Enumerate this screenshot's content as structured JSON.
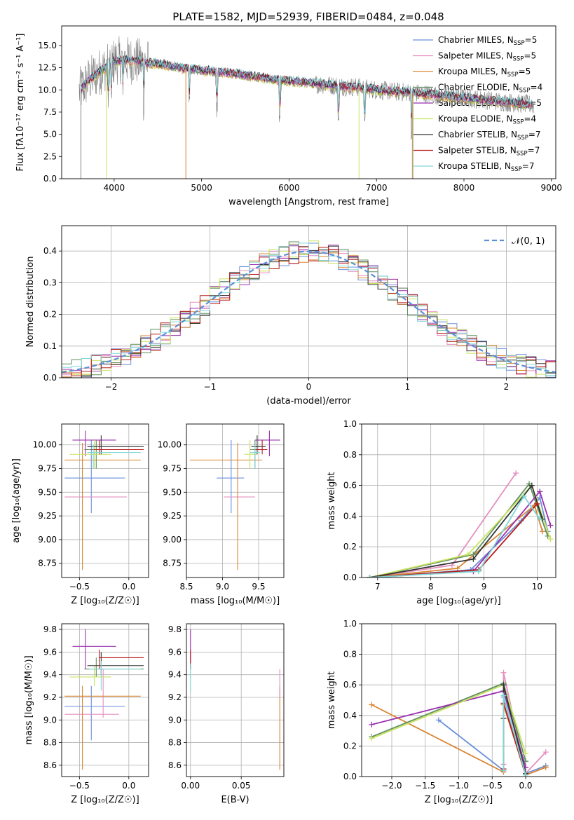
{
  "title": "PLATE=1582, MJD=52939, FIBERID=0484, z=0.048",
  "colors": {
    "c0": "#6a8fd9",
    "c1": "#e58fbf",
    "c2": "#d98530",
    "c3": "#5f8f5f",
    "c4": "#9b2fb0",
    "c5": "#c9e35f",
    "c6": "#333333",
    "c7": "#b81c1c",
    "c8": "#7fd6d6",
    "gray": "#808080",
    "normal": "#5b8fd6"
  },
  "legend_entries": [
    {
      "label": "Chabrier MILES, N",
      "sub": "SSP",
      "suffix": "=5",
      "color": "c0"
    },
    {
      "label": "Salpeter MILES, N",
      "sub": "SSP",
      "suffix": "=5",
      "color": "c1"
    },
    {
      "label": "Kroupa MILES, N",
      "sub": "SSP",
      "suffix": "=5",
      "color": "c2"
    },
    {
      "label": "Chabrier ELODIE, N",
      "sub": "SSP",
      "suffix": "=4",
      "color": "c3"
    },
    {
      "label": "Salpeter ELODIE, N",
      "sub": "SSP",
      "suffix": "=5",
      "color": "c4"
    },
    {
      "label": "Kroupa ELODIE, N",
      "sub": "SSP",
      "suffix": "=4",
      "color": "c5"
    },
    {
      "label": "Chabrier STELIB, N",
      "sub": "SSP",
      "suffix": "=7",
      "color": "c6"
    },
    {
      "label": "Salpeter STELIB, N",
      "sub": "SSP",
      "suffix": "=7",
      "color": "c7"
    },
    {
      "label": "Kroupa STELIB, N",
      "sub": "SSP",
      "suffix": "=7",
      "color": "c8"
    }
  ],
  "chart_data": [
    {
      "id": "spectrum",
      "type": "line",
      "xlabel": "wavelength [Angstrom, rest frame]",
      "ylabel": "Flux [fλ10⁻¹⁷ erg cm⁻² s⁻¹ A⁻¹]",
      "xlim": [
        3400,
        9050
      ],
      "ylim": [
        0,
        17.2
      ],
      "xticks": [
        4000,
        5000,
        6000,
        7000,
        8000,
        9000
      ],
      "yticks": [
        0.0,
        2.5,
        5.0,
        7.5,
        10.0,
        12.5,
        15.0
      ],
      "continuum": {
        "x": [
          3600,
          3700,
          3800,
          3900,
          4000,
          4100,
          4200,
          4400,
          4600,
          4800,
          5000,
          5200,
          5400,
          5600,
          5800,
          6000,
          6200,
          6400,
          6600,
          6800,
          7000,
          7200,
          7400,
          7600,
          7800,
          8000,
          8200,
          8400,
          8600,
          8800
        ],
        "y": [
          9.8,
          11.0,
          11.8,
          12.5,
          13.2,
          13.4,
          13.3,
          13.0,
          12.8,
          12.4,
          12.2,
          12.0,
          11.8,
          11.5,
          11.2,
          11.0,
          10.8,
          10.6,
          10.4,
          10.3,
          10.0,
          9.8,
          9.7,
          9.5,
          9.3,
          9.1,
          8.9,
          8.7,
          8.5,
          8.3
        ]
      },
      "absorption_lines": [
        3934,
        3969,
        4102,
        4340,
        4861,
        5175,
        5893,
        6563,
        6867,
        7400
      ]
    },
    {
      "id": "residuals",
      "type": "bar",
      "xlabel": "(data-model)/error",
      "ylabel": "Normed distribution",
      "xlim": [
        -2.5,
        2.5
      ],
      "ylim": [
        0,
        0.48
      ],
      "xticks": [
        -2,
        -1,
        0,
        1,
        2
      ],
      "yticks": [
        0.0,
        0.1,
        0.2,
        0.3,
        0.4
      ],
      "bin_width": 0.1,
      "legend_label": "𝒩(0, 1)",
      "grid": true
    },
    {
      "id": "age_vs_Z",
      "type": "scatter",
      "xlabel": "Z [log₁₀(Z/Z☉)]",
      "ylabel": "age  [log₁₀(age/yr)]",
      "xlim": [
        -0.68,
        0.2
      ],
      "ylim": [
        8.6,
        10.22
      ],
      "xticks": [
        -0.5,
        0.0
      ],
      "yticks": [
        8.75,
        9.0,
        9.25,
        9.5,
        9.75,
        10.0
      ],
      "points": [
        {
          "c": "c0",
          "x": -0.38,
          "y": 9.65,
          "xl": -0.65,
          "xh": -0.04,
          "yl": 9.28,
          "yh": 10.05
        },
        {
          "c": "c1",
          "x": -0.36,
          "y": 9.45,
          "xl": -0.65,
          "xh": -0.02,
          "yl": 9.45,
          "yh": 9.45
        },
        {
          "c": "c2",
          "x": -0.47,
          "y": 9.84,
          "xl": -0.65,
          "xh": 0.12,
          "yl": 8.68,
          "yh": 10.02
        },
        {
          "c": "c3",
          "x": -0.33,
          "y": 9.95,
          "xl": -0.45,
          "xh": 0.15,
          "yl": 9.75,
          "yh": 10.05
        },
        {
          "c": "c4",
          "x": -0.44,
          "y": 10.05,
          "xl": -0.57,
          "xh": -0.13,
          "yl": 9.88,
          "yh": 10.15
        },
        {
          "c": "c5",
          "x": -0.35,
          "y": 9.9,
          "xl": -0.6,
          "xh": -0.18,
          "yl": 9.75,
          "yh": 10.05
        },
        {
          "c": "c6",
          "x": -0.28,
          "y": 9.98,
          "xl": -0.42,
          "xh": 0.15,
          "yl": 9.9,
          "yh": 10.1
        },
        {
          "c": "c7",
          "x": -0.3,
          "y": 9.95,
          "xl": -0.38,
          "xh": 0.15,
          "yl": 9.9,
          "yh": 10.05
        },
        {
          "c": "c8",
          "x": -0.36,
          "y": 9.92,
          "xl": -0.42,
          "xh": 0.12,
          "yl": 9.75,
          "yh": 10.0
        }
      ]
    },
    {
      "id": "age_vs_mass",
      "type": "scatter",
      "xlabel": "mass [log₁₀(M/M☉)]",
      "ylabel": "",
      "xlim": [
        8.5,
        9.85
      ],
      "ylim": [
        8.6,
        10.22
      ],
      "xticks": [
        8.5,
        9.0,
        9.5
      ],
      "yticks": [
        8.75,
        9.0,
        9.25,
        9.5,
        9.75,
        10.0
      ],
      "points": [
        {
          "c": "c0",
          "x": 9.12,
          "y": 9.65,
          "xl": 8.92,
          "xh": 9.3,
          "yl": 9.28,
          "yh": 10.05
        },
        {
          "c": "c1",
          "x": 9.05,
          "y": 9.45,
          "xl": 9.02,
          "xh": 9.45,
          "yl": 9.45,
          "yh": 9.45
        },
        {
          "c": "c2",
          "x": 9.21,
          "y": 9.84,
          "xl": 8.55,
          "xh": 9.55,
          "yl": 8.68,
          "yh": 10.02
        },
        {
          "c": "c3",
          "x": 9.45,
          "y": 9.95,
          "xl": 9.38,
          "xh": 9.55,
          "yl": 9.75,
          "yh": 10.05
        },
        {
          "c": "c4",
          "x": 9.65,
          "y": 10.05,
          "xl": 9.45,
          "xh": 9.8,
          "yl": 9.88,
          "yh": 10.15
        },
        {
          "c": "c5",
          "x": 9.38,
          "y": 9.9,
          "xl": 9.3,
          "xh": 9.48,
          "yl": 9.75,
          "yh": 10.05
        },
        {
          "c": "c6",
          "x": 9.48,
          "y": 9.98,
          "xl": 9.4,
          "xh": 9.6,
          "yl": 9.9,
          "yh": 10.1
        },
        {
          "c": "c7",
          "x": 9.55,
          "y": 9.95,
          "xl": 9.45,
          "xh": 9.62,
          "yl": 9.9,
          "yh": 10.05
        },
        {
          "c": "c8",
          "x": 9.45,
          "y": 9.92,
          "xl": 9.38,
          "xh": 9.52,
          "yl": 9.75,
          "yh": 10.0
        }
      ]
    },
    {
      "id": "massweight_vs_age",
      "type": "line",
      "xlabel": "age  [log₁₀(age/yr)]",
      "ylabel": "mass weight",
      "xlim": [
        6.7,
        10.35
      ],
      "ylim": [
        0,
        1.0
      ],
      "xticks": [
        7,
        8,
        9,
        10
      ],
      "yticks": [
        0.0,
        0.2,
        0.4,
        0.6,
        0.8,
        1.0
      ],
      "series": [
        {
          "c": "c0",
          "x": [
            6.85,
            8.75,
            9.7,
            10.05,
            10.2
          ],
          "y": [
            0.0,
            0.05,
            0.37,
            0.52,
            0.3
          ]
        },
        {
          "c": "c1",
          "x": [
            6.85,
            8.4,
            9.6
          ],
          "y": [
            0.0,
            0.08,
            0.68
          ]
        },
        {
          "c": "c2",
          "x": [
            6.85,
            8.5,
            9.95,
            10.1
          ],
          "y": [
            0.0,
            0.06,
            0.47,
            0.3
          ]
        },
        {
          "c": "c3",
          "x": [
            6.85,
            8.8,
            9.85,
            10.2
          ],
          "y": [
            0.0,
            0.15,
            0.61,
            0.27
          ]
        },
        {
          "c": "c4",
          "x": [
            6.85,
            8.8,
            10.05,
            10.25
          ],
          "y": [
            0.0,
            0.04,
            0.56,
            0.34
          ]
        },
        {
          "c": "c5",
          "x": [
            6.85,
            8.7,
            9.9,
            10.25
          ],
          "y": [
            0.0,
            0.15,
            0.6,
            0.25
          ]
        },
        {
          "c": "c6",
          "x": [
            6.85,
            8.8,
            9.9,
            10.1
          ],
          "y": [
            0.0,
            0.12,
            0.6,
            0.38
          ]
        },
        {
          "c": "c7",
          "x": [
            6.85,
            8.9,
            10.0
          ],
          "y": [
            0.0,
            0.05,
            0.48
          ]
        },
        {
          "c": "c8",
          "x": [
            6.85,
            8.9,
            9.75,
            10.05
          ],
          "y": [
            0.0,
            0.04,
            0.53,
            0.38
          ]
        }
      ]
    },
    {
      "id": "mass_vs_Z",
      "type": "scatter",
      "xlabel": "Z [log₁₀(Z/Z☉)]",
      "ylabel": "mass [log₁₀(M/M☉)]",
      "xlim": [
        -0.68,
        0.2
      ],
      "ylim": [
        8.5,
        9.85
      ],
      "xticks": [
        -0.5,
        0.0
      ],
      "yticks": [
        8.6,
        8.8,
        9.0,
        9.2,
        9.4,
        9.6,
        9.8
      ],
      "points": [
        {
          "c": "c0",
          "x": -0.38,
          "y": 9.12,
          "xl": -0.65,
          "xh": -0.04,
          "yl": 8.82,
          "yh": 9.3
        },
        {
          "c": "c1",
          "x": -0.26,
          "y": 9.05,
          "xl": -0.65,
          "xh": -0.1,
          "yl": 9.02,
          "yh": 9.45
        },
        {
          "c": "c2",
          "x": -0.47,
          "y": 9.21,
          "xl": -0.65,
          "xh": 0.12,
          "yl": 8.56,
          "yh": 9.3
        },
        {
          "c": "c3",
          "x": -0.33,
          "y": 9.45,
          "xl": -0.45,
          "xh": 0.15,
          "yl": 9.38,
          "yh": 9.55
        },
        {
          "c": "c4",
          "x": -0.44,
          "y": 9.65,
          "xl": -0.57,
          "xh": -0.13,
          "yl": 9.45,
          "yh": 9.8
        },
        {
          "c": "c5",
          "x": -0.35,
          "y": 9.38,
          "xl": -0.6,
          "xh": -0.18,
          "yl": 9.3,
          "yh": 9.48
        },
        {
          "c": "c6",
          "x": -0.28,
          "y": 9.48,
          "xl": -0.42,
          "xh": 0.15,
          "yl": 9.4,
          "yh": 9.6
        },
        {
          "c": "c7",
          "x": -0.3,
          "y": 9.55,
          "xl": -0.3,
          "xh": 0.15,
          "yl": 9.45,
          "yh": 9.62
        },
        {
          "c": "c8",
          "x": -0.28,
          "y": 9.45,
          "xl": -0.4,
          "xh": 0.12,
          "yl": 9.26,
          "yh": 9.52
        }
      ]
    },
    {
      "id": "mass_vs_ebv",
      "type": "scatter",
      "xlabel": "E(B-V)",
      "ylabel": "",
      "xlim": [
        -0.004,
        0.092
      ],
      "ylim": [
        8.5,
        9.85
      ],
      "xticks": [
        0.0,
        0.05
      ],
      "yticks": [
        8.6,
        8.8,
        9.0,
        9.2,
        9.4,
        9.6,
        9.8
      ],
      "points": [
        {
          "c": "c4",
          "x": 0.0,
          "y": 9.65,
          "xl": 0.0,
          "xh": 0.0,
          "yl": 9.45,
          "yh": 9.8
        },
        {
          "c": "c7",
          "x": 0.0,
          "y": 9.55,
          "xl": 0.0,
          "xh": 0.0,
          "yl": 9.45,
          "yh": 9.62
        },
        {
          "c": "c8",
          "x": 0.0,
          "y": 9.4,
          "xl": 0.0,
          "xh": 0.0,
          "yl": 9.25,
          "yh": 9.5
        },
        {
          "c": "c2",
          "x": 0.088,
          "y": 9.21,
          "xl": 0.088,
          "xh": 0.088,
          "yl": 8.56,
          "yh": 9.3
        },
        {
          "c": "c1",
          "x": 0.088,
          "y": 9.3,
          "xl": 0.088,
          "xh": 0.088,
          "yl": 9.2,
          "yh": 9.45
        }
      ]
    },
    {
      "id": "massweight_vs_Z",
      "type": "line",
      "xlabel": "Z [log₁₀(Z/Z☉)]",
      "ylabel": "mass weight",
      "xlim": [
        -2.45,
        0.45
      ],
      "ylim": [
        0,
        1.0
      ],
      "xticks": [
        -2.0,
        -1.5,
        -1.0,
        -0.5,
        0.0
      ],
      "yticks": [
        0.0,
        0.2,
        0.4,
        0.6,
        0.8,
        1.0
      ],
      "series": [
        {
          "c": "c0",
          "x": [
            -1.3,
            -0.33,
            -0.33,
            0.0,
            0.3
          ],
          "y": [
            0.37,
            0.04,
            0.52,
            0.02,
            0.07
          ]
        },
        {
          "c": "c1",
          "x": [
            -0.33,
            -0.33,
            0.0,
            0.3
          ],
          "y": [
            0.08,
            0.68,
            0.02,
            0.16
          ]
        },
        {
          "c": "c2",
          "x": [
            -2.3,
            -0.33,
            -0.33,
            0.0,
            0.3
          ],
          "y": [
            0.47,
            0.03,
            0.47,
            0.01,
            0.06
          ]
        },
        {
          "c": "c3",
          "x": [
            -2.3,
            -0.33,
            0.0
          ],
          "y": [
            0.26,
            0.61,
            0.1
          ]
        },
        {
          "c": "c4",
          "x": [
            -2.3,
            -0.33,
            0.0
          ],
          "y": [
            0.34,
            0.56,
            0.06
          ]
        },
        {
          "c": "c5",
          "x": [
            -2.3,
            -0.33,
            0.0
          ],
          "y": [
            0.25,
            0.6,
            0.15
          ]
        },
        {
          "c": "c6",
          "x": [
            -0.33,
            -0.33,
            0.0
          ],
          "y": [
            0.38,
            0.6,
            0.02
          ]
        },
        {
          "c": "c7",
          "x": [
            -0.33,
            -0.33,
            0.0
          ],
          "y": [
            0.05,
            0.48,
            0.01
          ]
        },
        {
          "c": "c8",
          "x": [
            -0.33,
            -0.33,
            0.0
          ],
          "y": [
            0.04,
            0.53,
            0.01
          ]
        }
      ]
    }
  ]
}
